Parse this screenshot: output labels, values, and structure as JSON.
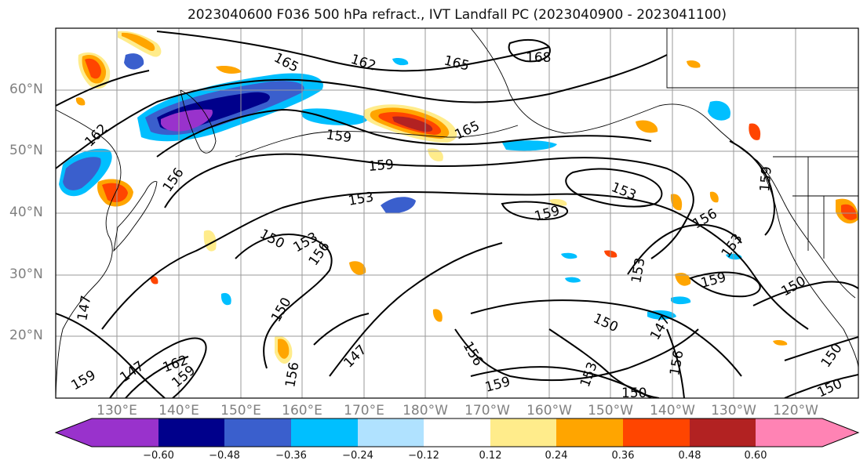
{
  "title": "2023040600 F036 500 hPa refract., IVT Landfall PC (2023040900 - 2023041100)",
  "lat_labels": [
    "60°N",
    "50°N",
    "40°N",
    "30°N",
    "20°N"
  ],
  "lon_labels": [
    "130°E",
    "140°E",
    "150°E",
    "160°E",
    "170°E",
    "180°W",
    "170°W",
    "160°W",
    "150°W",
    "140°W",
    "130°W",
    "120°W"
  ],
  "contour_labels": [
    "165",
    "162",
    "165",
    "168",
    "162",
    "159",
    "165",
    "159",
    "156",
    "153",
    "153",
    "159",
    "156",
    "150",
    "153",
    "156",
    "153",
    "153",
    "159",
    "150",
    "150",
    "150",
    "147",
    "147",
    "156",
    "156",
    "159",
    "153",
    "150",
    "150",
    "147",
    "156",
    "159",
    "147",
    "150",
    "162",
    "159",
    "159"
  ],
  "colorbar": {
    "ticks": [
      "−0.60",
      "−0.48",
      "−0.36",
      "−0.24",
      "−0.12",
      "0.12",
      "0.24",
      "0.36",
      "0.48",
      "0.60"
    ],
    "colors": [
      "#9932cc",
      "#00008b",
      "#3a5fcd",
      "#00bfff",
      "#b0e2ff",
      "#ffffff",
      "#ffec8b",
      "#ffa500",
      "#ff4500",
      "#b22222",
      "#ff83b4"
    ]
  }
}
